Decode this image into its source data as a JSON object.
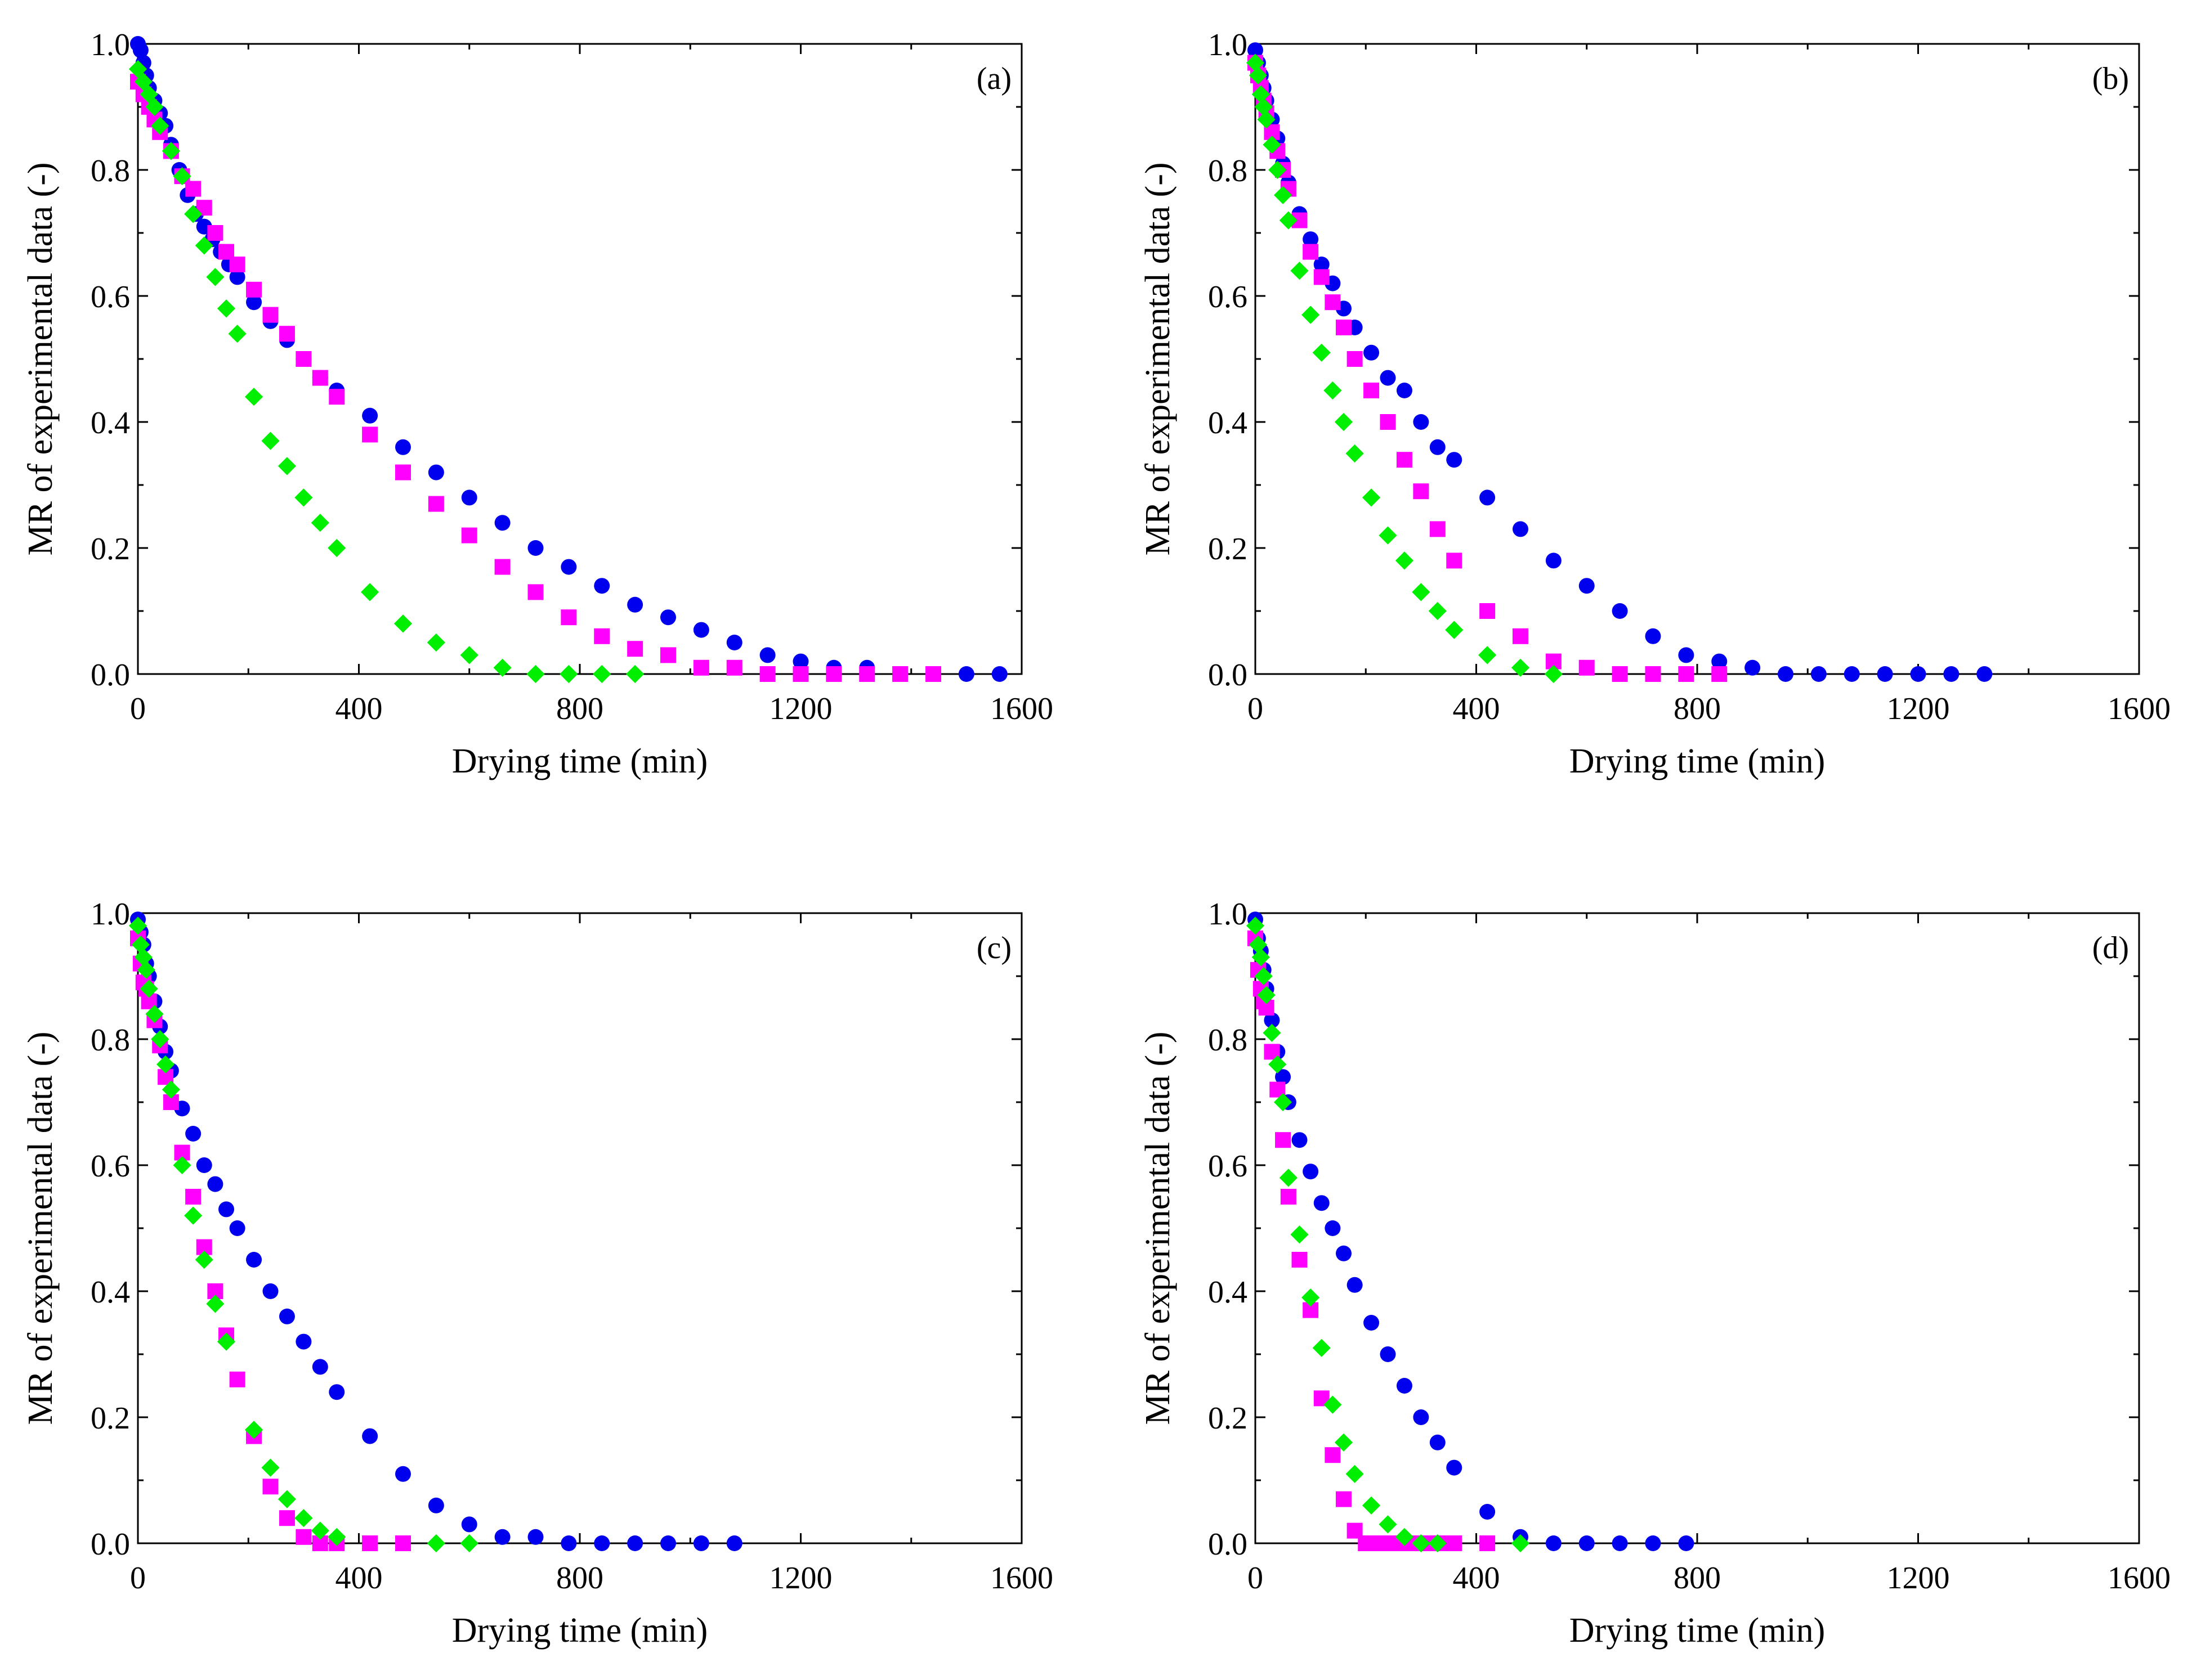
{
  "chart_data": [
    {
      "type": "scatter",
      "panel_label": "(a)",
      "title": "",
      "xlabel": "Drying time (min)",
      "ylabel": "MR of experimental data (-)",
      "xlim": [
        0,
        1600
      ],
      "ylim": [
        0,
        1.0
      ],
      "xticks": [
        "0",
        "400",
        "800",
        "1200",
        "1600"
      ],
      "yticks": [
        "0.0",
        "0.2",
        "0.4",
        "0.6",
        "0.8",
        "1.0"
      ],
      "grid": false,
      "series": [
        {
          "name": "circle",
          "marker": "circle",
          "color": "#0000ee",
          "x": [
            0,
            5,
            10,
            15,
            20,
            30,
            40,
            50,
            60,
            75,
            90,
            105,
            120,
            135,
            150,
            165,
            180,
            210,
            240,
            270,
            300,
            330,
            360,
            420,
            480,
            540,
            600,
            660,
            720,
            780,
            840,
            900,
            960,
            1020,
            1080,
            1140,
            1200,
            1260,
            1320,
            1380,
            1440,
            1500,
            1560
          ],
          "y": [
            1.0,
            0.99,
            0.97,
            0.95,
            0.93,
            0.91,
            0.89,
            0.87,
            0.84,
            0.8,
            0.76,
            0.73,
            0.71,
            0.69,
            0.67,
            0.65,
            0.63,
            0.59,
            0.56,
            0.53,
            0.5,
            0.47,
            0.45,
            0.41,
            0.36,
            0.32,
            0.28,
            0.24,
            0.2,
            0.17,
            0.14,
            0.11,
            0.09,
            0.07,
            0.05,
            0.03,
            0.02,
            0.01,
            0.01,
            0.0,
            0.0,
            0.0,
            0.0
          ]
        },
        {
          "name": "square",
          "marker": "square",
          "color": "#ff00ff",
          "x": [
            0,
            10,
            20,
            30,
            40,
            60,
            80,
            100,
            120,
            140,
            160,
            180,
            210,
            240,
            270,
            300,
            330,
            360,
            420,
            480,
            540,
            600,
            660,
            720,
            780,
            840,
            900,
            960,
            1020,
            1080,
            1140,
            1200,
            1260,
            1320,
            1380,
            1440
          ],
          "y": [
            0.94,
            0.92,
            0.9,
            0.88,
            0.86,
            0.83,
            0.79,
            0.77,
            0.74,
            0.7,
            0.67,
            0.65,
            0.61,
            0.57,
            0.54,
            0.5,
            0.47,
            0.44,
            0.38,
            0.32,
            0.27,
            0.22,
            0.17,
            0.13,
            0.09,
            0.06,
            0.04,
            0.03,
            0.01,
            0.01,
            0.0,
            0.0,
            0.0,
            0.0,
            0.0,
            0.0
          ]
        },
        {
          "name": "diamond",
          "marker": "diamond",
          "color": "#00ee00",
          "x": [
            0,
            10,
            20,
            30,
            40,
            60,
            80,
            100,
            120,
            140,
            160,
            180,
            210,
            240,
            270,
            300,
            330,
            360,
            420,
            480,
            540,
            600,
            660,
            720,
            780,
            840,
            900
          ],
          "y": [
            0.96,
            0.94,
            0.92,
            0.9,
            0.87,
            0.83,
            0.79,
            0.73,
            0.68,
            0.63,
            0.58,
            0.54,
            0.44,
            0.37,
            0.33,
            0.28,
            0.24,
            0.2,
            0.13,
            0.08,
            0.05,
            0.03,
            0.01,
            0.0,
            0.0,
            0.0,
            0.0
          ]
        }
      ]
    },
    {
      "type": "scatter",
      "panel_label": "(b)",
      "title": "",
      "xlabel": "Drying time (min)",
      "ylabel": "MR of experimental data (-)",
      "xlim": [
        0,
        1600
      ],
      "ylim": [
        0,
        1.0
      ],
      "xticks": [
        "0",
        "400",
        "800",
        "1200",
        "1600"
      ],
      "yticks": [
        "0.0",
        "0.2",
        "0.4",
        "0.6",
        "0.8",
        "1.0"
      ],
      "grid": false,
      "series": [
        {
          "name": "circle",
          "marker": "circle",
          "color": "#0000ee",
          "x": [
            0,
            5,
            10,
            15,
            20,
            30,
            40,
            50,
            60,
            80,
            100,
            120,
            140,
            160,
            180,
            210,
            240,
            270,
            300,
            330,
            360,
            420,
            480,
            540,
            600,
            660,
            720,
            780,
            840,
            900,
            960,
            1020,
            1080,
            1140,
            1200,
            1260,
            1320
          ],
          "y": [
            0.99,
            0.97,
            0.95,
            0.93,
            0.91,
            0.88,
            0.85,
            0.81,
            0.78,
            0.73,
            0.69,
            0.65,
            0.62,
            0.58,
            0.55,
            0.51,
            0.47,
            0.45,
            0.4,
            0.36,
            0.34,
            0.28,
            0.23,
            0.18,
            0.14,
            0.1,
            0.06,
            0.03,
            0.02,
            0.01,
            0.0,
            0.0,
            0.0,
            0.0,
            0.0,
            0.0,
            0.0
          ]
        },
        {
          "name": "square",
          "marker": "square",
          "color": "#ff00ff",
          "x": [
            0,
            5,
            10,
            15,
            20,
            30,
            40,
            50,
            60,
            80,
            100,
            120,
            140,
            160,
            180,
            210,
            240,
            270,
            300,
            330,
            360,
            420,
            480,
            540,
            600,
            660,
            720,
            780,
            840
          ],
          "y": [
            0.97,
            0.95,
            0.93,
            0.91,
            0.89,
            0.86,
            0.83,
            0.8,
            0.77,
            0.72,
            0.67,
            0.63,
            0.59,
            0.55,
            0.5,
            0.45,
            0.4,
            0.34,
            0.29,
            0.23,
            0.18,
            0.1,
            0.06,
            0.02,
            0.01,
            0.0,
            0.0,
            0.0,
            0.0
          ]
        },
        {
          "name": "diamond",
          "marker": "diamond",
          "color": "#00ee00",
          "x": [
            0,
            5,
            10,
            15,
            20,
            30,
            40,
            50,
            60,
            80,
            100,
            120,
            140,
            160,
            180,
            210,
            240,
            270,
            300,
            330,
            360,
            420,
            480,
            540
          ],
          "y": [
            0.97,
            0.95,
            0.92,
            0.9,
            0.88,
            0.84,
            0.8,
            0.76,
            0.72,
            0.64,
            0.57,
            0.51,
            0.45,
            0.4,
            0.35,
            0.28,
            0.22,
            0.18,
            0.13,
            0.1,
            0.07,
            0.03,
            0.01,
            0.0
          ]
        }
      ]
    },
    {
      "type": "scatter",
      "panel_label": "(c)",
      "title": "",
      "xlabel": "Drying time (min)",
      "ylabel": "MR of experimental data (-)",
      "xlim": [
        0,
        1600
      ],
      "ylim": [
        0,
        1.0
      ],
      "xticks": [
        "0",
        "400",
        "800",
        "1200",
        "1600"
      ],
      "yticks": [
        "0.0",
        "0.2",
        "0.4",
        "0.6",
        "0.8",
        "1.0"
      ],
      "grid": false,
      "series": [
        {
          "name": "circle",
          "marker": "circle",
          "color": "#0000ee",
          "x": [
            0,
            5,
            10,
            15,
            20,
            30,
            40,
            50,
            60,
            80,
            100,
            120,
            140,
            160,
            180,
            210,
            240,
            270,
            300,
            330,
            360,
            420,
            480,
            540,
            600,
            660,
            720,
            780,
            840,
            900,
            960,
            1020,
            1080
          ],
          "y": [
            0.99,
            0.97,
            0.95,
            0.92,
            0.9,
            0.86,
            0.82,
            0.78,
            0.75,
            0.69,
            0.65,
            0.6,
            0.57,
            0.53,
            0.5,
            0.45,
            0.4,
            0.36,
            0.32,
            0.28,
            0.24,
            0.17,
            0.11,
            0.06,
            0.03,
            0.01,
            0.01,
            0.0,
            0.0,
            0.0,
            0.0,
            0.0,
            0.0
          ]
        },
        {
          "name": "square",
          "marker": "square",
          "color": "#ff00ff",
          "x": [
            0,
            5,
            10,
            15,
            20,
            30,
            40,
            50,
            60,
            80,
            100,
            120,
            140,
            160,
            180,
            210,
            240,
            270,
            300,
            330,
            360,
            420,
            480
          ],
          "y": [
            0.96,
            0.92,
            0.89,
            0.88,
            0.86,
            0.83,
            0.79,
            0.74,
            0.7,
            0.62,
            0.55,
            0.47,
            0.4,
            0.33,
            0.26,
            0.17,
            0.09,
            0.04,
            0.01,
            0.0,
            0.0,
            0.0,
            0.0
          ]
        },
        {
          "name": "diamond",
          "marker": "diamond",
          "color": "#00ee00",
          "x": [
            0,
            5,
            10,
            15,
            20,
            30,
            40,
            50,
            60,
            80,
            100,
            120,
            140,
            160,
            210,
            240,
            270,
            300,
            330,
            360,
            540,
            600
          ],
          "y": [
            0.98,
            0.95,
            0.93,
            0.91,
            0.88,
            0.84,
            0.8,
            0.76,
            0.72,
            0.6,
            0.52,
            0.45,
            0.38,
            0.32,
            0.18,
            0.12,
            0.07,
            0.04,
            0.02,
            0.01,
            0.0,
            0.0
          ]
        }
      ]
    },
    {
      "type": "scatter",
      "panel_label": "(d)",
      "title": "",
      "xlabel": "Drying time (min)",
      "ylabel": "MR of experimental data (-)",
      "xlim": [
        0,
        1600
      ],
      "ylim": [
        0,
        1.0
      ],
      "xticks": [
        "0",
        "400",
        "800",
        "1200",
        "1600"
      ],
      "yticks": [
        "0.0",
        "0.2",
        "0.4",
        "0.6",
        "0.8",
        "1.0"
      ],
      "grid": false,
      "series": [
        {
          "name": "circle",
          "marker": "circle",
          "color": "#0000ee",
          "x": [
            0,
            5,
            10,
            15,
            20,
            30,
            40,
            50,
            60,
            80,
            100,
            120,
            140,
            160,
            180,
            210,
            240,
            270,
            300,
            330,
            360,
            420,
            480,
            540,
            600,
            660,
            720,
            780
          ],
          "y": [
            0.99,
            0.96,
            0.94,
            0.91,
            0.88,
            0.83,
            0.78,
            0.74,
            0.7,
            0.64,
            0.59,
            0.54,
            0.5,
            0.46,
            0.41,
            0.35,
            0.3,
            0.25,
            0.2,
            0.16,
            0.12,
            0.05,
            0.01,
            0.0,
            0.0,
            0.0,
            0.0,
            0.0
          ]
        },
        {
          "name": "square",
          "marker": "square",
          "color": "#ff00ff",
          "x": [
            0,
            5,
            10,
            15,
            20,
            30,
            40,
            50,
            60,
            80,
            100,
            120,
            140,
            160,
            180,
            200,
            220,
            240,
            260,
            280,
            300,
            320,
            340,
            360,
            420
          ],
          "y": [
            0.96,
            0.91,
            0.88,
            0.86,
            0.85,
            0.78,
            0.72,
            0.64,
            0.55,
            0.45,
            0.37,
            0.23,
            0.14,
            0.07,
            0.02,
            0.0,
            0.0,
            0.0,
            0.0,
            0.0,
            0.0,
            0.0,
            0.0,
            0.0,
            0.0
          ]
        },
        {
          "name": "diamond",
          "marker": "diamond",
          "color": "#00ee00",
          "x": [
            0,
            5,
            10,
            15,
            20,
            30,
            40,
            50,
            60,
            80,
            100,
            120,
            140,
            160,
            180,
            210,
            240,
            270,
            300,
            330,
            480
          ],
          "y": [
            0.98,
            0.95,
            0.93,
            0.9,
            0.87,
            0.81,
            0.76,
            0.7,
            0.58,
            0.49,
            0.39,
            0.31,
            0.22,
            0.16,
            0.11,
            0.06,
            0.03,
            0.01,
            0.0,
            0.0,
            0.0
          ]
        }
      ]
    }
  ]
}
